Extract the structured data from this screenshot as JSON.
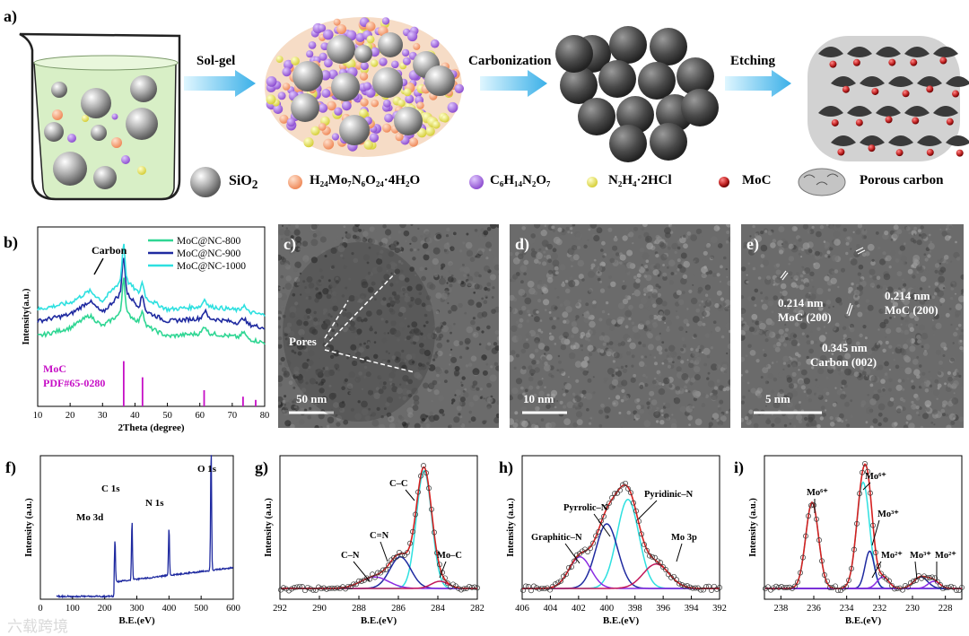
{
  "panel_a": {
    "label": "a)",
    "steps": [
      "Sol-gel",
      "Carbonization",
      "Etching"
    ],
    "legend": [
      {
        "name": "SiO2-legend",
        "main": "SiO",
        "sub": "2",
        "color": "#bdbdbd"
      },
      {
        "name": "molybdate-legend",
        "text": "H₂₄Mo₇N₆O₂₄·4H₂O",
        "color": "#f4a47c"
      },
      {
        "name": "citric-legend",
        "text": "C₆H₁₄N₂O₇",
        "color": "#a46bd8"
      },
      {
        "name": "hydrazine-legend",
        "text": "N₂H₄·2HCl",
        "color": "#e8e05a"
      },
      {
        "name": "moc-legend",
        "text": "MoC",
        "color": "#c62828"
      },
      {
        "name": "porous-carbon-legend",
        "text": "Porous carbon",
        "color": "#888888"
      }
    ]
  },
  "panel_b": {
    "label": "b)",
    "annotation": "Carbon",
    "ref_label_1": "MoC",
    "ref_label_2": "PDF#65-0280",
    "chart_data": {
      "type": "line",
      "xlabel": "2Theta (degree)",
      "ylabel": "Intensity(a.u.)",
      "xlim": [
        10,
        80
      ],
      "xticks": [
        10,
        20,
        30,
        40,
        50,
        60,
        70,
        80
      ],
      "series": [
        {
          "name": "MoC@NC-800",
          "color": "#2fd693",
          "x": [
            10,
            20,
            26,
            30,
            36.5,
            42,
            50,
            62,
            74,
            80
          ],
          "values": [
            0.3,
            0.4,
            0.55,
            0.42,
            0.6,
            0.45,
            0.3,
            0.34,
            0.28,
            0.22
          ]
        },
        {
          "name": "MoC@NC-900",
          "color": "#1f2aa0",
          "x": [
            10,
            20,
            26,
            30,
            36.5,
            42,
            50,
            62,
            74,
            80
          ],
          "values": [
            0.48,
            0.56,
            0.72,
            0.58,
            0.85,
            0.62,
            0.48,
            0.52,
            0.45,
            0.4
          ]
        },
        {
          "name": "MoC@NC-1000",
          "color": "#2ee0e0",
          "x": [
            10,
            20,
            26,
            30,
            36.5,
            42,
            50,
            62,
            74,
            80
          ],
          "values": [
            0.62,
            0.7,
            0.84,
            0.72,
            1.0,
            0.78,
            0.62,
            0.66,
            0.6,
            0.55
          ]
        }
      ],
      "reference_peaks": [
        36.5,
        42.3,
        61.3,
        73.3,
        77.2
      ],
      "reference_heights": [
        0.14,
        0.09,
        0.05,
        0.03,
        0.02
      ]
    }
  },
  "panel_c": {
    "label": "c)",
    "pores": "Pores",
    "scale": "50 nm"
  },
  "panel_d": {
    "label": "d)",
    "scale": "10 nm"
  },
  "panel_e": {
    "label": "e)",
    "scale": "5 nm",
    "ann1_a": "0.214 nm",
    "ann1_b": "MoC (200)",
    "ann2_a": "0.214 nm",
    "ann2_b": "MoC (200)",
    "ann3_a": "0.345 nm",
    "ann3_b": "Carbon (002)"
  },
  "panel_f": {
    "label": "f)",
    "peak_labels": [
      "Mo 3d",
      "C 1s",
      "N 1s",
      "O 1s"
    ],
    "chart_data": {
      "type": "line",
      "xlabel": "B.E.(eV)",
      "ylabel": "Intensity (a.u.)",
      "xlim": [
        0,
        600
      ],
      "xticks": [
        0,
        100,
        200,
        300,
        400,
        500,
        600
      ],
      "tick_labels": [
        "0",
        "100",
        "200",
        "300",
        "400",
        "500",
        "600"
      ],
      "peaks": [
        {
          "x": 232,
          "y": 0.3
        },
        {
          "x": 285,
          "y": 0.42
        },
        {
          "x": 400,
          "y": 0.34
        },
        {
          "x": 531,
          "y": 0.85
        }
      ]
    }
  },
  "panel_g": {
    "label": "g)",
    "peak_labels": [
      "C–C",
      "C=N",
      "C–N",
      "Mo–C"
    ],
    "chart_data": {
      "type": "line",
      "xlabel": "B.E.(eV)",
      "ylabel": "Intensity (a.u.)",
      "xlim": [
        292,
        282
      ],
      "xticks": [
        292,
        290,
        288,
        286,
        284,
        282
      ],
      "components": [
        {
          "name": "C–C",
          "center": 284.7,
          "height": 0.82,
          "width": 0.55,
          "color": "#2ee0e0"
        },
        {
          "name": "C=N",
          "center": 285.9,
          "height": 0.22,
          "width": 0.75,
          "color": "#1f2aa0"
        },
        {
          "name": "C–N",
          "center": 287.2,
          "height": 0.08,
          "width": 1.0,
          "color": "#8a2be2"
        },
        {
          "name": "Mo–C",
          "center": 283.9,
          "height": 0.05,
          "width": 0.6,
          "color": "#c2185b"
        }
      ]
    }
  },
  "panel_h": {
    "label": "h)",
    "peak_labels": [
      "Pyridinic–N",
      "Pyrrolic–N",
      "Graphitic–N",
      "Mo 3p"
    ],
    "chart_data": {
      "type": "line",
      "xlabel": "B.E.(eV)",
      "ylabel": "Intensity (a.u.)",
      "xlim": [
        406,
        392
      ],
      "xticks": [
        406,
        404,
        402,
        400,
        398,
        396,
        394,
        392
      ],
      "components": [
        {
          "name": "Pyridinic–N",
          "center": 398.5,
          "height": 0.62,
          "width": 1.1,
          "color": "#2ee0e0"
        },
        {
          "name": "Pyrrolic–N",
          "center": 400.0,
          "height": 0.45,
          "width": 1.1,
          "color": "#1f2aa0"
        },
        {
          "name": "Graphitic–N",
          "center": 401.9,
          "height": 0.22,
          "width": 1.1,
          "color": "#8a2be2"
        },
        {
          "name": "Mo 3p",
          "center": 396.5,
          "height": 0.17,
          "width": 1.3,
          "color": "#c2185b"
        }
      ]
    }
  },
  "panel_i": {
    "label": "i)",
    "peak_labels": [
      "Mo⁶⁺",
      "Mo⁶⁺",
      "Mo³⁺",
      "Mo²⁺",
      "Mo³⁺",
      "Mo²⁺"
    ],
    "chart_data": {
      "type": "line",
      "xlabel": "B.E.(eV)",
      "ylabel": "Intensity (a.u.)",
      "xlim": [
        239,
        227
      ],
      "xticks": [
        238,
        236,
        234,
        232,
        230,
        228
      ],
      "components": [
        {
          "name": "Mo⁶⁺",
          "center": 236.1,
          "height": 0.6,
          "width": 0.55,
          "color": "#2ee0e0"
        },
        {
          "name": "Mo⁶⁺",
          "center": 233.0,
          "height": 0.74,
          "width": 0.55,
          "color": "#2ee0e0"
        },
        {
          "name": "Mo³⁺",
          "center": 232.6,
          "height": 0.26,
          "width": 0.4,
          "color": "#1f2aa0"
        },
        {
          "name": "Mo²⁺",
          "center": 231.8,
          "height": 0.08,
          "width": 0.5,
          "color": "#8a2be2"
        },
        {
          "name": "Mo³⁺",
          "center": 229.5,
          "height": 0.08,
          "width": 0.6,
          "color": "#1f2aa0"
        },
        {
          "name": "Mo²⁺",
          "center": 228.7,
          "height": 0.05,
          "width": 0.5,
          "color": "#8a2be2"
        }
      ]
    }
  },
  "watermark": "六载跨境"
}
